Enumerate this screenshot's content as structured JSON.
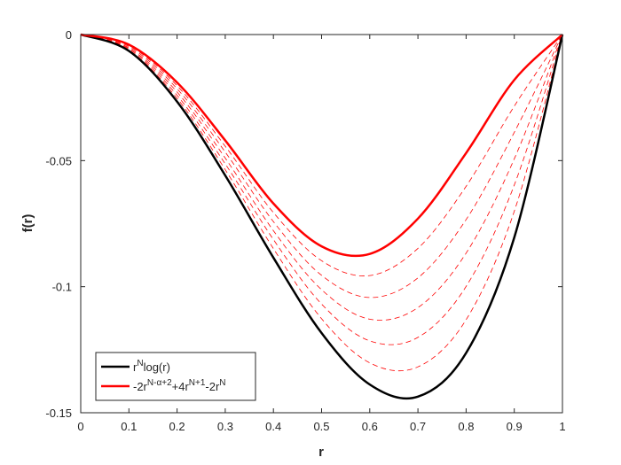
{
  "chart_data": {
    "type": "line",
    "xlabel": "r",
    "ylabel": "f(r)",
    "x": [
      0,
      0.1,
      0.2,
      0.3,
      0.4,
      0.5,
      0.6,
      0.7,
      0.8,
      0.9,
      1
    ],
    "xlim": [
      0,
      1
    ],
    "ylim": [
      -0.15,
      0
    ],
    "xticks": [
      0,
      0.1,
      0.2,
      0.3,
      0.4,
      0.5,
      0.6,
      0.7,
      0.8,
      0.9,
      1
    ],
    "yticks": [
      -0.15,
      -0.1,
      -0.05,
      0
    ],
    "grid": false,
    "legend": "lower left",
    "series": [
      {
        "name": "r^{N}log(r)",
        "color": "#000000",
        "style": "solid",
        "values": [
          0,
          -0.0065,
          -0.0266,
          -0.0559,
          -0.0885,
          -0.1184,
          -0.1388,
          -0.1436,
          -0.1263,
          -0.0805,
          0
        ]
      },
      {
        "name": "-2r^{N-α+2}+4r^{N+1}-2r^{N}",
        "color": "#ff0000",
        "style": "solid",
        "values": [
          0,
          -0.004,
          -0.019,
          -0.042,
          -0.067,
          -0.084,
          -0.087,
          -0.073,
          -0.047,
          -0.018,
          0
        ]
      },
      {
        "color": "#ff0000",
        "style": "dashed",
        "values": [
          0,
          -0.0044,
          -0.0203,
          -0.0443,
          -0.0706,
          -0.0897,
          -0.0956,
          -0.0848,
          -0.0602,
          -0.0284,
          0
        ]
      },
      {
        "color": "#ff0000",
        "style": "dashed",
        "values": [
          0,
          -0.0048,
          -0.0215,
          -0.0466,
          -0.0742,
          -0.0955,
          -0.1043,
          -0.0965,
          -0.0734,
          -0.0388,
          0
        ]
      },
      {
        "color": "#ff0000",
        "style": "dashed",
        "values": [
          0,
          -0.0053,
          -0.0228,
          -0.049,
          -0.0778,
          -0.1012,
          -0.1129,
          -0.1083,
          -0.0867,
          -0.0493,
          0
        ]
      },
      {
        "color": "#ff0000",
        "style": "dashed",
        "values": [
          0,
          -0.0057,
          -0.0241,
          -0.0513,
          -0.0813,
          -0.1069,
          -0.1215,
          -0.1201,
          -0.0999,
          -0.0597,
          0
        ]
      },
      {
        "color": "#ff0000",
        "style": "dashed",
        "values": [
          0,
          -0.0061,
          -0.0253,
          -0.0536,
          -0.0849,
          -0.1127,
          -0.1302,
          -0.1318,
          -0.1131,
          -0.0701,
          0
        ]
      }
    ]
  }
}
